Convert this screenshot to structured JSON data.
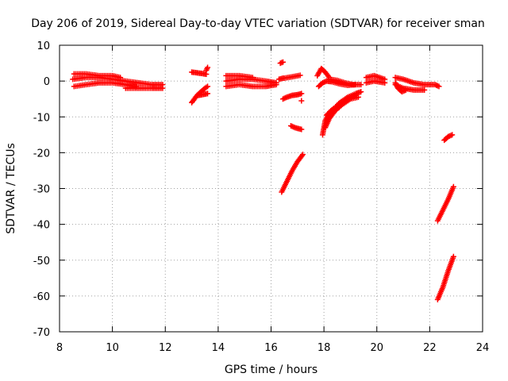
{
  "chart_data": {
    "type": "scatter",
    "title": "Day 206 of 2019, Sidereal Day-to-day VTEC variation (SDTVAR) for receiver sman",
    "xlabel": "GPS time / hours",
    "ylabel": "SDTVAR / TECUs",
    "xlim": [
      8,
      24
    ],
    "ylim": [
      -70,
      10
    ],
    "x_ticks": [
      8,
      10,
      12,
      14,
      16,
      18,
      20,
      22,
      24
    ],
    "y_ticks": [
      10,
      0,
      -10,
      -20,
      -30,
      -40,
      -50,
      -60,
      -70
    ],
    "grid": true,
    "legend": "none",
    "marker": "plus",
    "series": [
      {
        "color": "#ff0000",
        "segments": [
          {
            "x": [
              8.5,
              9.0,
              9.5,
              10.0,
              10.5,
              11.0,
              11.5,
              11.9
            ],
            "y": [
              0.5,
              1.0,
              1.0,
              0.5,
              0.0,
              -0.5,
              -1.0,
              -1.0
            ]
          },
          {
            "x": [
              8.55,
              9.0,
              9.5,
              10.0,
              10.5,
              10.9
            ],
            "y": [
              -1.5,
              -1.0,
              -0.5,
              -0.5,
              -1.0,
              -1.5
            ]
          },
          {
            "x": [
              8.55,
              9.0,
              9.5,
              10.0,
              10.3
            ],
            "y": [
              2.0,
              2.0,
              1.5,
              1.5,
              1.0
            ]
          },
          {
            "x": [
              10.5,
              11.0,
              11.5,
              11.9
            ],
            "y": [
              -2.0,
              -2.0,
              -2.0,
              -2.0
            ]
          },
          {
            "x": [
              13.0,
              13.2,
              13.4,
              13.55
            ],
            "y": [
              2.5,
              2.3,
              2.1,
              1.9
            ]
          },
          {
            "x": [
              13.55,
              13.6
            ],
            "y": [
              3.0,
              3.8
            ]
          },
          {
            "x": [
              13.0,
              13.1,
              13.2,
              13.35,
              13.5,
              13.6
            ],
            "y": [
              -6.0,
              -5.0,
              -4.0,
              -3.0,
              -2.0,
              -1.5
            ]
          },
          {
            "x": [
              13.25,
              13.4,
              13.6
            ],
            "y": [
              -4.0,
              -3.8,
              -3.5
            ]
          },
          {
            "x": [
              14.3,
              14.8,
              15.3,
              15.8,
              16.2
            ],
            "y": [
              0.0,
              0.5,
              0.5,
              0.0,
              -0.5
            ]
          },
          {
            "x": [
              14.3,
              14.8,
              15.3,
              15.8,
              16.2
            ],
            "y": [
              -1.5,
              -1.0,
              -1.5,
              -1.5,
              -1.0
            ]
          },
          {
            "x": [
              14.3,
              14.8,
              15.3
            ],
            "y": [
              1.5,
              1.5,
              1.0
            ]
          },
          {
            "x": [
              16.3,
              16.45
            ],
            "y": [
              0.5,
              0.8
            ]
          },
          {
            "x": [
              16.35,
              16.45
            ],
            "y": [
              5.0,
              5.3
            ]
          },
          {
            "x": [
              16.5,
              16.8,
              17.1
            ],
            "y": [
              0.8,
              1.2,
              1.6
            ]
          },
          {
            "x": [
              16.45,
              16.6,
              16.8,
              17.0,
              17.15
            ],
            "y": [
              -5.0,
              -4.5,
              -4.0,
              -3.8,
              -3.5
            ]
          },
          {
            "x": [
              17.15
            ],
            "y": [
              -5.5
            ]
          },
          {
            "x": [
              16.75,
              16.9,
              17.0,
              17.15
            ],
            "y": [
              -12.5,
              -13.0,
              -13.2,
              -13.5
            ]
          },
          {
            "x": [
              16.4,
              16.6,
              16.8,
              17.0,
              17.2
            ],
            "y": [
              -31.0,
              -28.0,
              -25.0,
              -22.5,
              -20.5
            ]
          },
          {
            "x": [
              17.75,
              17.9,
              18.05,
              18.2
            ],
            "y": [
              1.5,
              3.5,
              2.5,
              1.0
            ]
          },
          {
            "x": [
              17.8,
              17.95,
              18.1,
              18.3,
              18.6,
              18.9,
              19.2
            ],
            "y": [
              -1.5,
              -0.5,
              0.0,
              -0.2,
              -0.8,
              -1.2,
              -1.0
            ]
          },
          {
            "x": [
              18.2,
              18.5,
              18.8,
              19.1,
              19.4
            ],
            "y": [
              0.5,
              0.2,
              -0.5,
              -1.0,
              -1.0
            ]
          },
          {
            "x": [
              17.95,
              18.05,
              18.2,
              18.4,
              18.6,
              18.9,
              19.2,
              19.4
            ],
            "y": [
              -15.0,
              -11.0,
              -9.0,
              -7.5,
              -6.0,
              -4.5,
              -3.5,
              -3.0
            ]
          },
          {
            "x": [
              18.05,
              18.2,
              18.4,
              18.7,
              19.0,
              19.3
            ],
            "y": [
              -13.0,
              -10.5,
              -8.5,
              -6.5,
              -5.0,
              -4.5
            ]
          },
          {
            "x": [
              18.1,
              18.3,
              18.6,
              18.9,
              19.2
            ],
            "y": [
              -9.5,
              -8.0,
              -6.5,
              -5.0,
              -4.0
            ]
          },
          {
            "x": [
              19.6,
              19.9,
              20.3
            ],
            "y": [
              1.0,
              1.5,
              0.5
            ]
          },
          {
            "x": [
              19.6,
              19.9,
              20.3
            ],
            "y": [
              -0.5,
              0.0,
              -0.5
            ]
          },
          {
            "x": [
              20.7,
              21.0,
              21.4,
              21.8,
              22.2,
              22.35
            ],
            "y": [
              1.0,
              0.5,
              -0.5,
              -1.0,
              -1.0,
              -1.5
            ]
          },
          {
            "x": [
              20.7,
              21.0,
              21.4,
              21.8
            ],
            "y": [
              -1.0,
              -2.0,
              -2.5,
              -2.5
            ]
          },
          {
            "x": [
              20.7,
              20.8,
              20.95,
              21.1
            ],
            "y": [
              -0.5,
              -2.0,
              -3.0,
              -2.5
            ]
          },
          {
            "x": [
              22.55,
              22.7,
              22.85
            ],
            "y": [
              -16.5,
              -15.5,
              -15.0
            ]
          },
          {
            "x": [
              22.3,
              22.5,
              22.7,
              22.9
            ],
            "y": [
              -39.0,
              -36.0,
              -33.0,
              -29.5
            ]
          },
          {
            "x": [
              22.3,
              22.5,
              22.7,
              22.9
            ],
            "y": [
              -61.0,
              -57.5,
              -53.0,
              -49.0
            ]
          }
        ]
      }
    ]
  }
}
